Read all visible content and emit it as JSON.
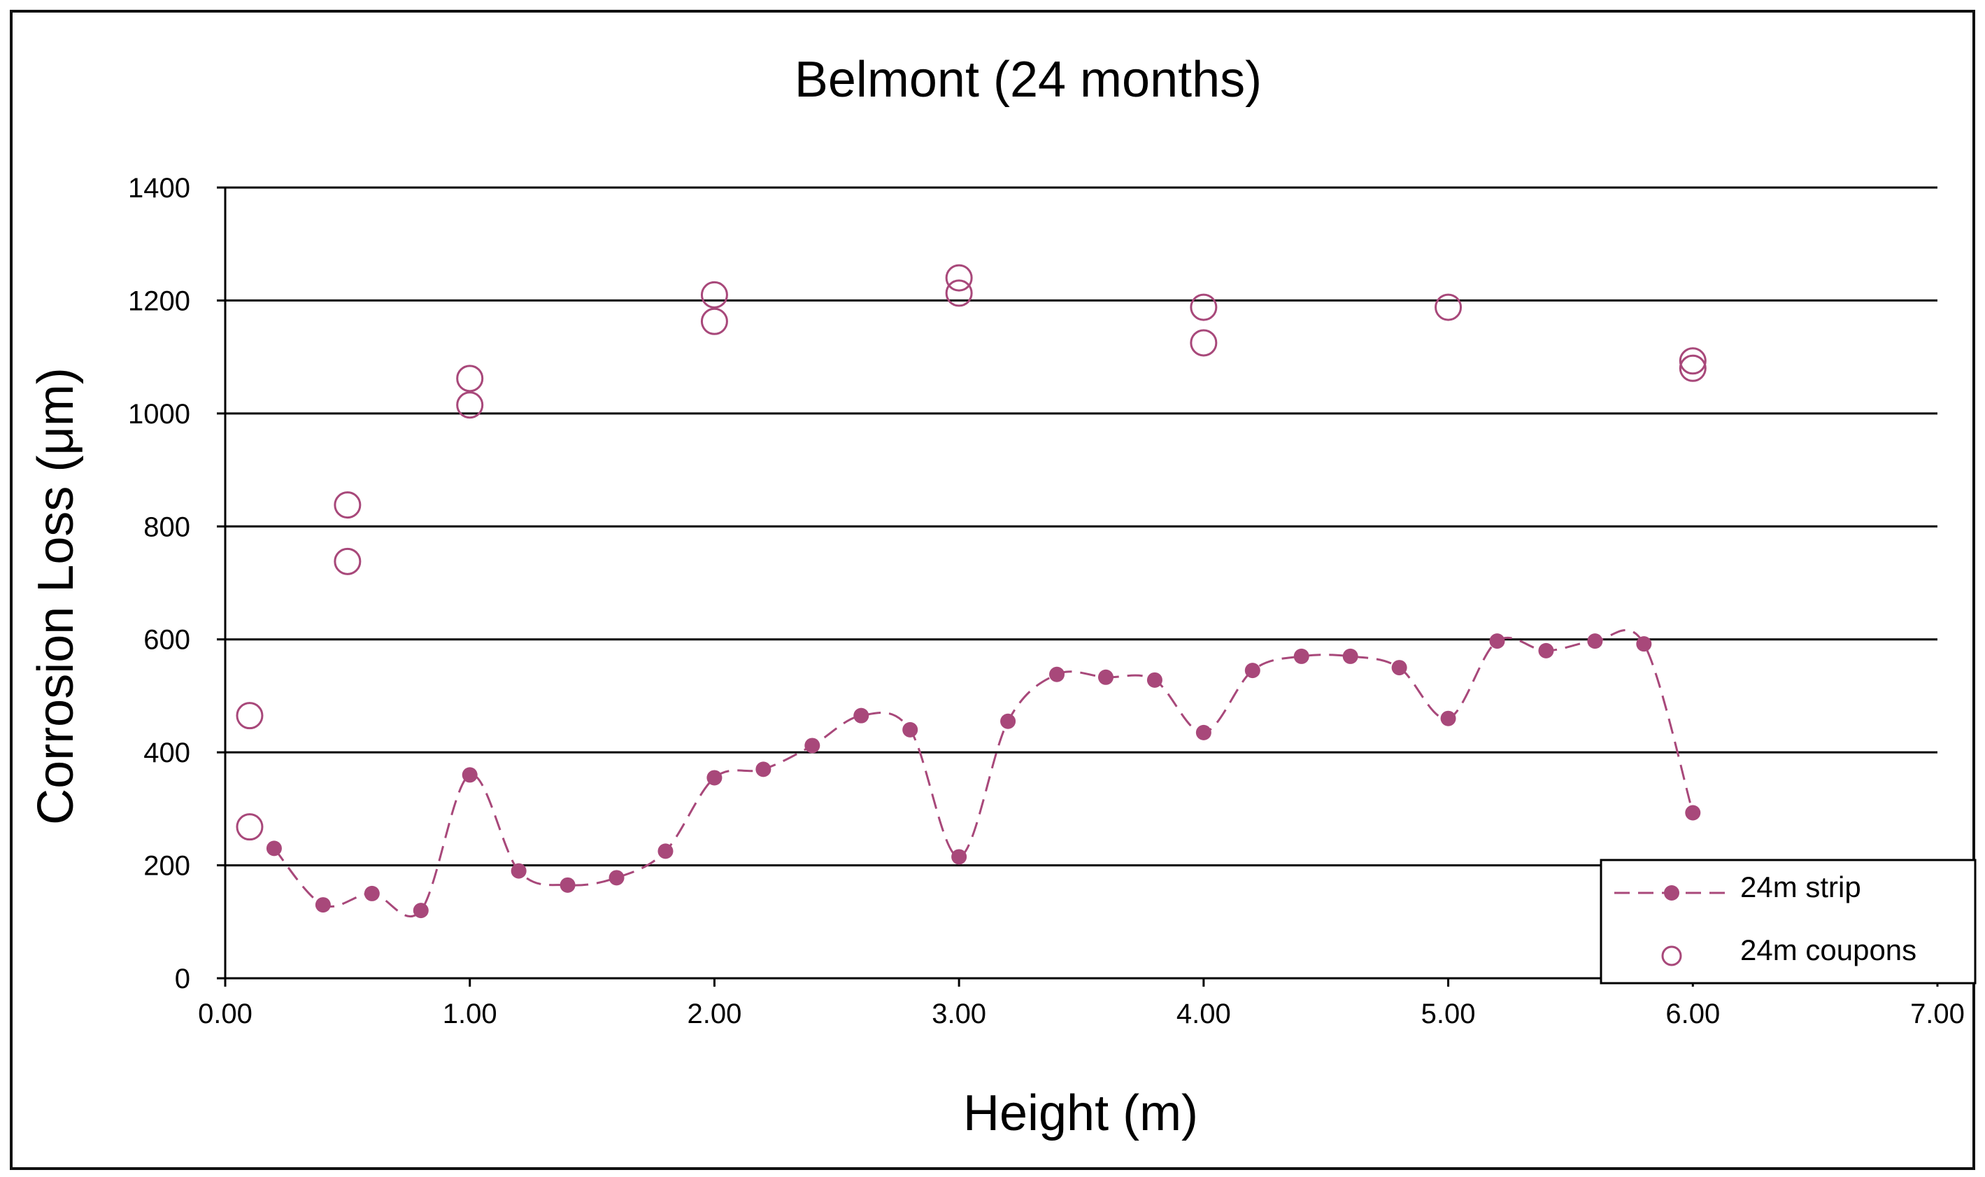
{
  "chart_data": {
    "type": "scatter",
    "title": "Belmont (24 months)",
    "xlabel": "Height (m)",
    "ylabel": "Corrosion Loss (μm)",
    "xlim": [
      0,
      7
    ],
    "ylim": [
      0,
      1400
    ],
    "xticks": [
      "0.00",
      "1.00",
      "2.00",
      "3.00",
      "4.00",
      "5.00",
      "6.00",
      "7.00"
    ],
    "yticks": [
      "0",
      "200",
      "400",
      "600",
      "800",
      "1000",
      "1200",
      "1400"
    ],
    "grid": "horizontal",
    "legend_position": "bottom-right",
    "colors": {
      "series": "#a8487a",
      "grid": "#000000"
    },
    "series": [
      {
        "name": "24m strip",
        "style": "dashed-line-filled-markers",
        "points": [
          [
            0.2,
            230
          ],
          [
            0.4,
            130
          ],
          [
            0.6,
            150
          ],
          [
            0.8,
            120
          ],
          [
            1.0,
            360
          ],
          [
            1.2,
            190
          ],
          [
            1.4,
            165
          ],
          [
            1.6,
            178
          ],
          [
            1.8,
            225
          ],
          [
            2.0,
            355
          ],
          [
            2.2,
            370
          ],
          [
            2.4,
            412
          ],
          [
            2.6,
            465
          ],
          [
            2.8,
            440
          ],
          [
            3.0,
            215
          ],
          [
            3.2,
            455
          ],
          [
            3.4,
            538
          ],
          [
            3.6,
            533
          ],
          [
            3.8,
            528
          ],
          [
            4.0,
            435
          ],
          [
            4.2,
            545
          ],
          [
            4.4,
            570
          ],
          [
            4.6,
            570
          ],
          [
            4.8,
            550
          ],
          [
            5.0,
            460
          ],
          [
            5.2,
            597
          ],
          [
            5.4,
            580
          ],
          [
            5.6,
            597
          ],
          [
            5.8,
            592
          ],
          [
            6.0,
            293
          ]
        ]
      },
      {
        "name": "24m coupons",
        "style": "open-circles",
        "points": [
          [
            0.1,
            465
          ],
          [
            0.1,
            268
          ],
          [
            0.5,
            838
          ],
          [
            0.5,
            738
          ],
          [
            1.0,
            1062
          ],
          [
            1.0,
            1015
          ],
          [
            2.0,
            1210
          ],
          [
            2.0,
            1163
          ],
          [
            3.0,
            1240
          ],
          [
            3.0,
            1213
          ],
          [
            4.0,
            1188
          ],
          [
            4.0,
            1125
          ],
          [
            5.0,
            1188
          ],
          [
            6.0,
            1093
          ],
          [
            6.0,
            1080
          ]
        ]
      }
    ]
  }
}
